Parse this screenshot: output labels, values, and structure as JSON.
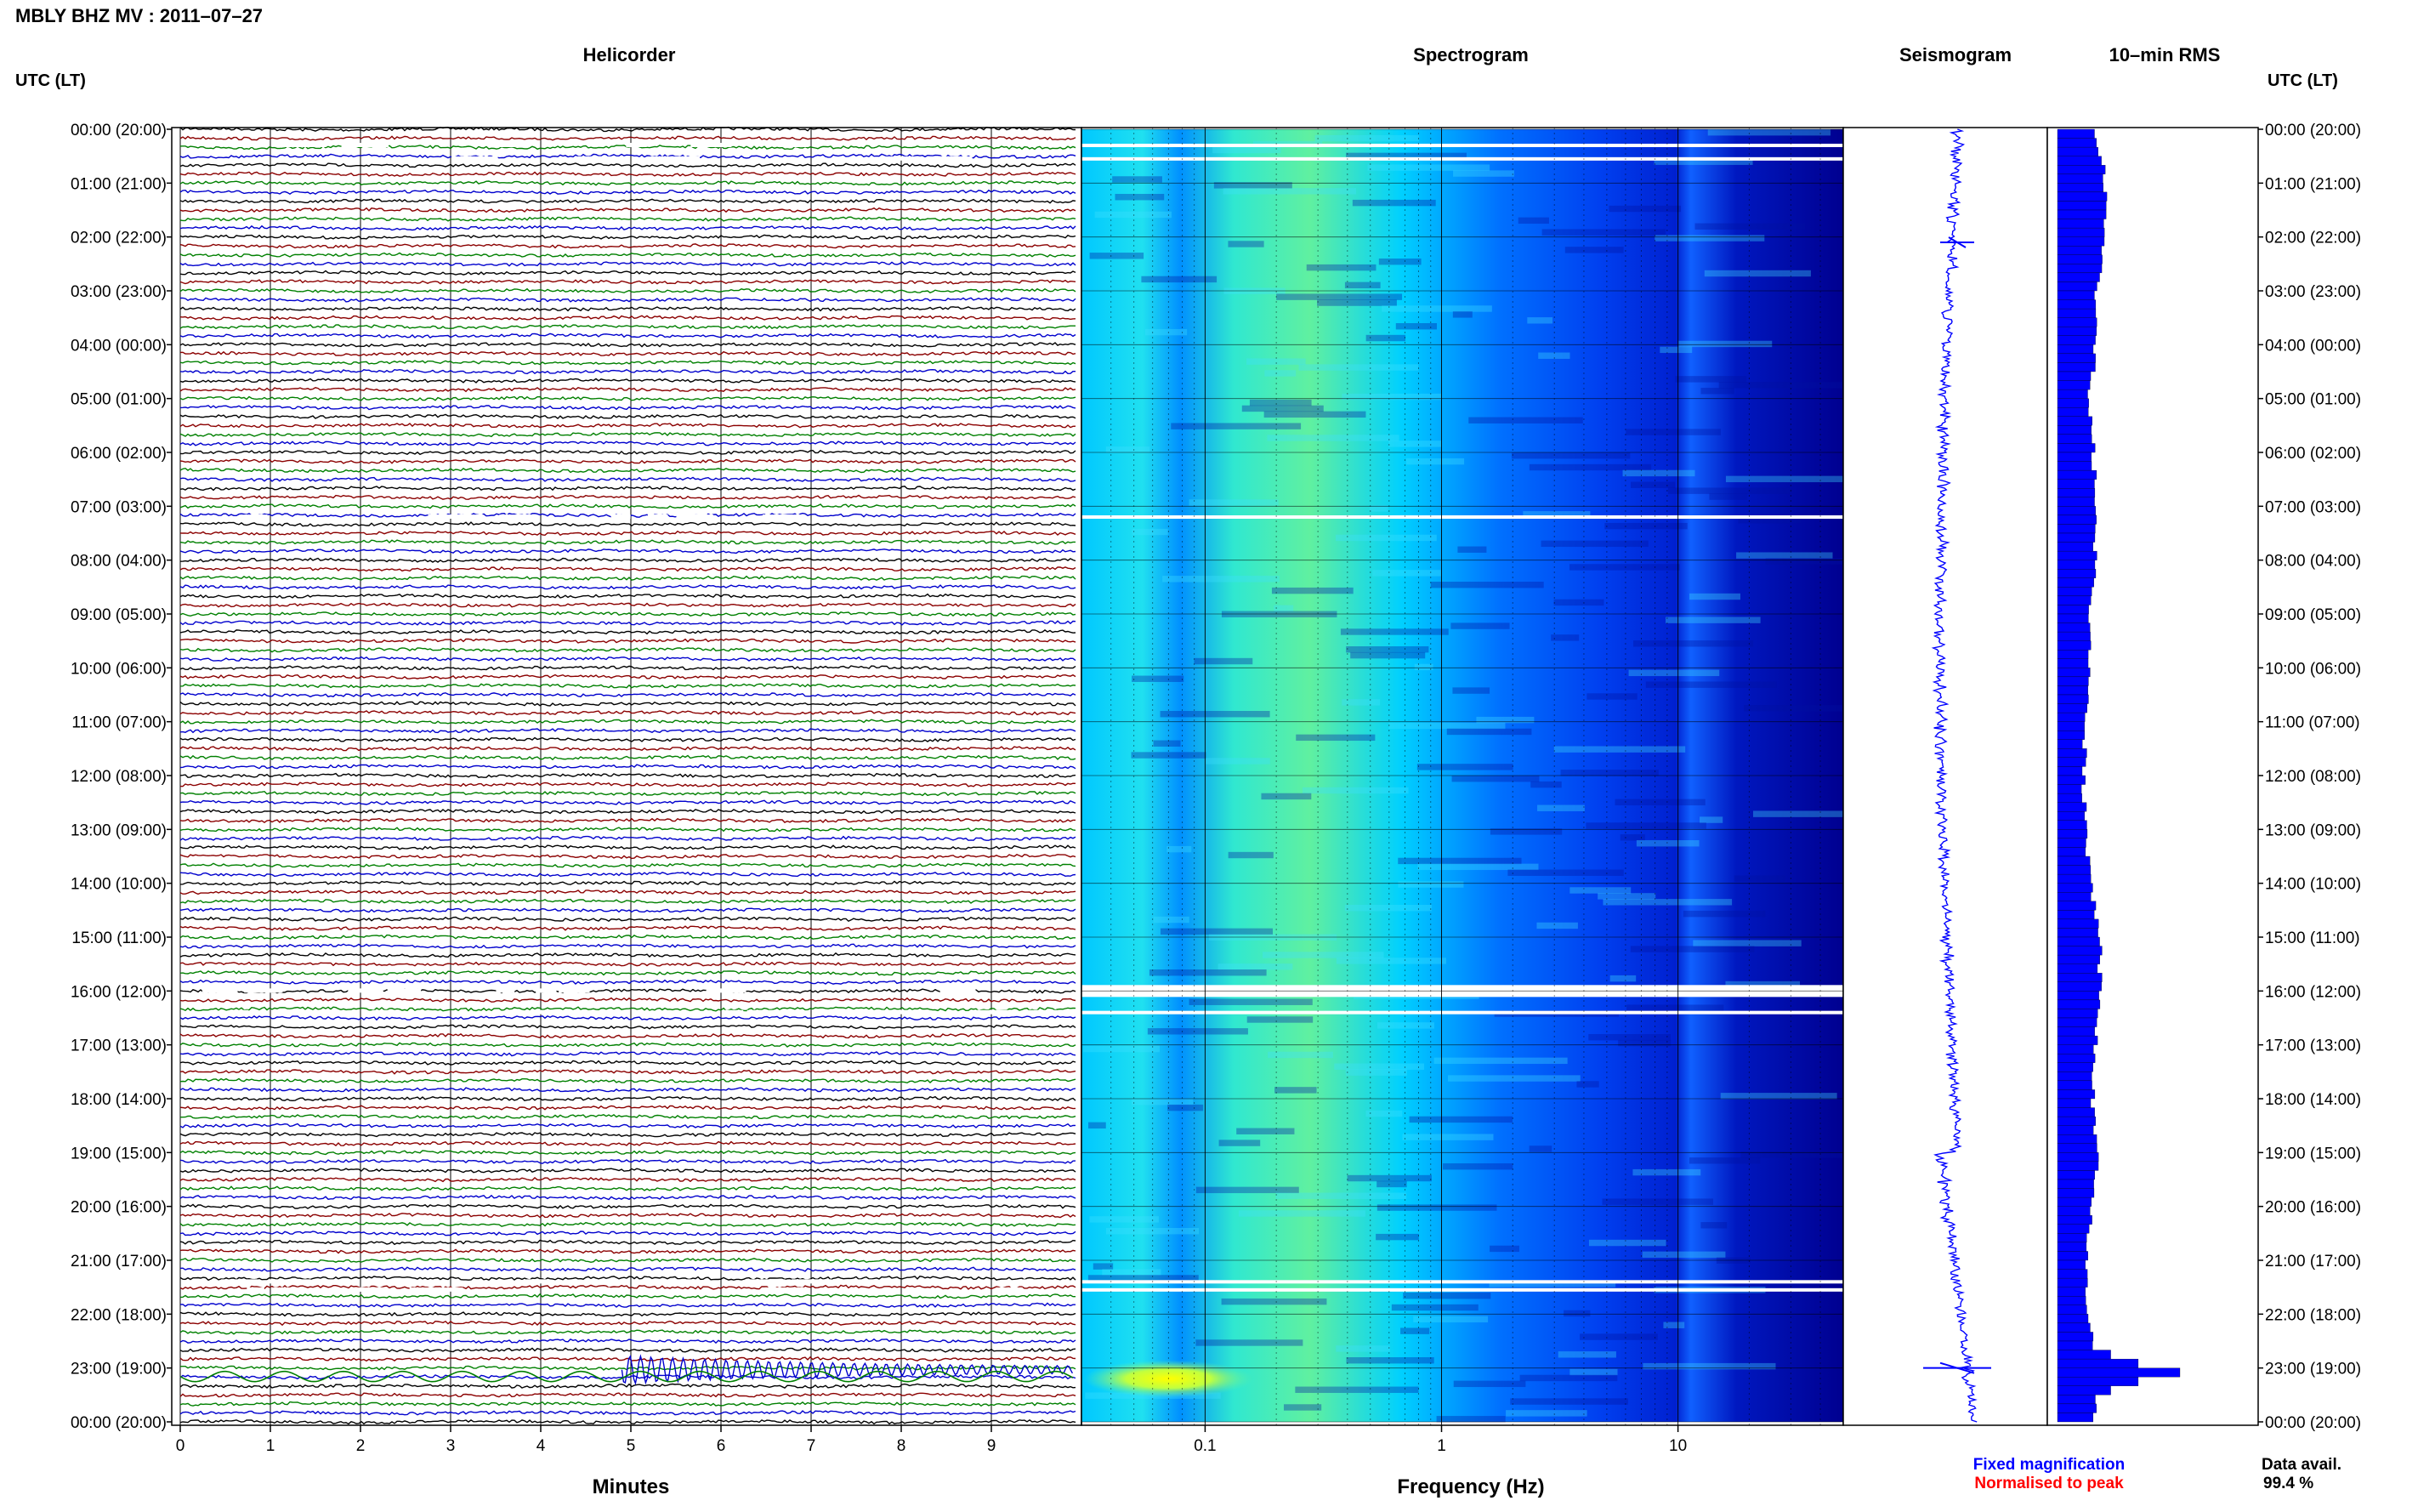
{
  "header": {
    "station_title": "MBLY BHZ MV : 2011–07–27"
  },
  "panels": {
    "helicorder": "Helicorder",
    "spectrogram": "Spectrogram",
    "seismogram": "Seismogram",
    "rms": "10–min RMS"
  },
  "time_axis": {
    "left_title": "UTC (LT)",
    "right_title": "UTC (LT)",
    "labels": [
      "00:00 (20:00)",
      "01:00 (21:00)",
      "02:00 (22:00)",
      "03:00 (23:00)",
      "04:00 (00:00)",
      "05:00 (01:00)",
      "06:00 (02:00)",
      "07:00 (03:00)",
      "08:00 (04:00)",
      "09:00 (05:00)",
      "10:00 (06:00)",
      "11:00 (07:00)",
      "12:00 (08:00)",
      "13:00 (09:00)",
      "14:00 (10:00)",
      "15:00 (11:00)",
      "16:00 (12:00)",
      "17:00 (13:00)",
      "18:00 (14:00)",
      "19:00 (15:00)",
      "20:00 (16:00)",
      "21:00 (17:00)",
      "22:00 (18:00)",
      "23:00 (19:00)",
      "00:00 (20:00)"
    ]
  },
  "footer": {
    "fixed_magnification": "Fixed magnification",
    "normalised_to_peak": "Normalised to peak",
    "data_avail_label": "Data avail.",
    "data_avail_value": "99.4 %"
  },
  "chart_data": [
    {
      "type": "line",
      "name": "helicorder",
      "title": "Helicorder",
      "xlabel": "Minutes",
      "x_ticks": [
        0,
        1,
        2,
        3,
        4,
        5,
        6,
        7,
        8,
        9
      ],
      "xlim": [
        0,
        10
      ],
      "traces_per_hour": 6,
      "trace_colors": [
        "#000000",
        "#8b0000",
        "#008000",
        "#0000cd"
      ],
      "gaps_hours": [
        0.3,
        0.55,
        7.2,
        16.0,
        16.4,
        21.4,
        21.55
      ],
      "event": {
        "hour": 23.0,
        "minute": 4.9,
        "label": ""
      },
      "regional_event": {
        "hour": 23.0,
        "minute": 0.0
      }
    },
    {
      "type": "heatmap",
      "name": "spectrogram",
      "title": "Spectrogram",
      "xlabel": "Frequency (Hz)",
      "x_scale": "log",
      "x_ticks": [
        0.1,
        1,
        10
      ],
      "xlim": [
        0.03,
        50
      ],
      "colormap": [
        "#000090",
        "#0000ff",
        "#00a0ff",
        "#00ffff",
        "#a0ff60",
        "#ffff00",
        "#ff8000"
      ],
      "gaps_hours": [
        0.3,
        0.55,
        7.2,
        16.0,
        16.4,
        21.4,
        21.55
      ]
    },
    {
      "type": "line",
      "name": "seismogram",
      "title": "Seismogram",
      "color": "#0000ff",
      "spikes_hours": [
        2.1,
        23.0
      ]
    },
    {
      "type": "bar",
      "name": "rms",
      "title": "10–min RMS",
      "color": "#0000ff",
      "hourly_rms": [
        0.26,
        0.31,
        0.29,
        0.25,
        0.24,
        0.21,
        0.23,
        0.25,
        0.24,
        0.22,
        0.2,
        0.18,
        0.17,
        0.19,
        0.22,
        0.28,
        0.27,
        0.24,
        0.23,
        0.26,
        0.21,
        0.19,
        0.2,
        0.26,
        0.23
      ],
      "peak": {
        "hour": 23.0,
        "value": 0.8
      }
    }
  ]
}
